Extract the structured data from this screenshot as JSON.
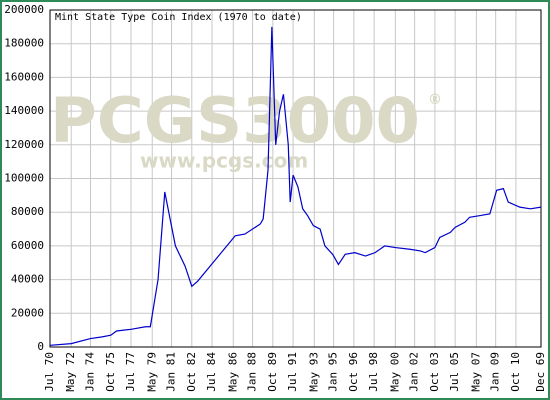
{
  "chart_data": {
    "type": "line",
    "title": "Mint State Type Coin Index (1970 to date)",
    "watermark": "PCGS3000",
    "watermark_mark": "®",
    "watermark_url": "www.pcgs.com",
    "xlim": [
      6,
      515
    ],
    "xticks": [
      {
        "value": 6,
        "label": "Jul 70"
      },
      {
        "value": 28,
        "label": "May 72"
      },
      {
        "value": 48,
        "label": "Jan 74"
      },
      {
        "value": 69,
        "label": "Oct 75"
      },
      {
        "value": 90,
        "label": "Jul 77"
      },
      {
        "value": 112,
        "label": "May 79"
      },
      {
        "value": 132,
        "label": "Jan 81"
      },
      {
        "value": 153,
        "label": "Oct 82"
      },
      {
        "value": 174,
        "label": "Jul 84"
      },
      {
        "value": 196,
        "label": "May 86"
      },
      {
        "value": 216,
        "label": "Jan 88"
      },
      {
        "value": 237,
        "label": "Oct 89"
      },
      {
        "value": 258,
        "label": "Jul 91"
      },
      {
        "value": 280,
        "label": "May 93"
      },
      {
        "value": 300,
        "label": "Jan 95"
      },
      {
        "value": 321,
        "label": "Oct 96"
      },
      {
        "value": 342,
        "label": "Jul 98"
      },
      {
        "value": 364,
        "label": "May 00"
      },
      {
        "value": 384,
        "label": "Jan 02"
      },
      {
        "value": 405,
        "label": "Oct 03"
      },
      {
        "value": 426,
        "label": "Jul 05"
      },
      {
        "value": 448,
        "label": "May 07"
      },
      {
        "value": 468,
        "label": "Jan 09"
      },
      {
        "value": 489,
        "label": "Oct 10"
      },
      {
        "value": 515,
        "label": "Dec 69"
      }
    ],
    "ylim": [
      0,
      200000
    ],
    "yticks": [
      0,
      20000,
      40000,
      60000,
      80000,
      100000,
      120000,
      140000,
      160000,
      180000,
      200000
    ],
    "grid": true,
    "series": [
      {
        "color": "#0000cc",
        "x": [
          6,
          28,
          48,
          60,
          69,
          75,
          90,
          105,
          110,
          118,
          125,
          136,
          146,
          153,
          159,
          172,
          198,
          208,
          224,
          227,
          232,
          236,
          240,
          244,
          248,
          253,
          255,
          258,
          263,
          268,
          273,
          279,
          286,
          291,
          299,
          305,
          312,
          322,
          333,
          343,
          353,
          364,
          379,
          390,
          395,
          405,
          410,
          421,
          426,
          436,
          441,
          452,
          462,
          469,
          476,
          481,
          493,
          504,
          515
        ],
        "values": [
          1000,
          2000,
          5000,
          6000,
          7000,
          9500,
          10500,
          12000,
          12000,
          40000,
          92000,
          60000,
          48000,
          36000,
          39000,
          48000,
          66000,
          67000,
          73000,
          76000,
          105000,
          190000,
          120000,
          140000,
          150000,
          120000,
          86000,
          102000,
          95000,
          82000,
          78000,
          72000,
          70000,
          60000,
          55000,
          49000,
          55000,
          56000,
          54000,
          56000,
          60000,
          59000,
          58000,
          57000,
          56000,
          59000,
          65000,
          68000,
          71000,
          74000,
          77000,
          78000,
          79000,
          93000,
          94000,
          86000,
          83000,
          82000,
          83000
        ]
      }
    ]
  }
}
